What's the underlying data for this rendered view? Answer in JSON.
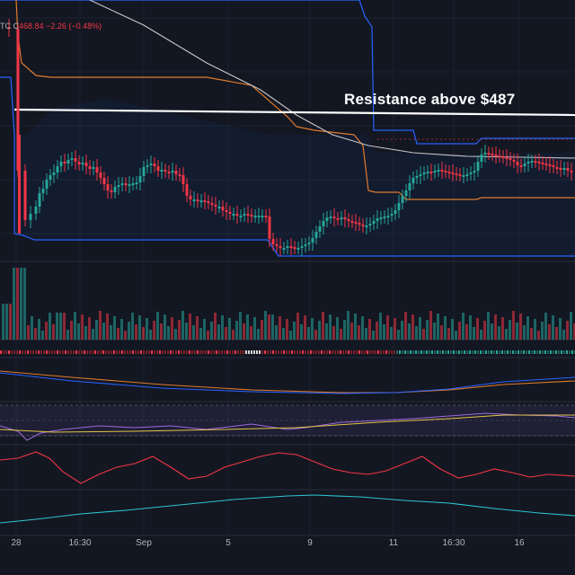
{
  "legend": {
    "ticker_fragment": "TC",
    "close_label": "C",
    "close_value": "468.84",
    "change": "−2.26 (−0.48%)"
  },
  "annotation": "Resistance above $487",
  "chart_data": {
    "type": "candlestick",
    "title": "",
    "xlabel": "",
    "ylabel": "",
    "x_ticks": [
      "28",
      "16:30",
      "Sep",
      "5",
      "9",
      "11",
      "16:30",
      "16"
    ],
    "resistance_level": 487,
    "last_close": 468.84,
    "change": -2.26,
    "change_pct": -0.48,
    "grid": true,
    "colors": {
      "up": "#26a69a",
      "down": "#f23645",
      "resistance": "#ffffff",
      "channel": "#2962ff",
      "inner_band": "#e07b2c",
      "moving_average": "#c8c8c8"
    },
    "panes": [
      "price",
      "volume",
      "oscillator",
      "moving-averages",
      "rsi",
      "indicator-red",
      "indicator-teal"
    ]
  }
}
